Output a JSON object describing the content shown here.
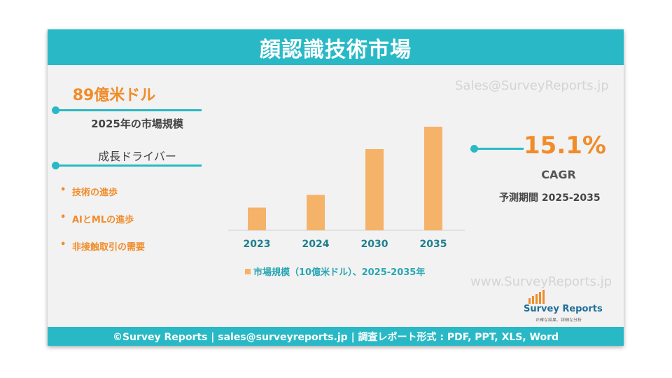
{
  "header": {
    "title": "顔認識技術市場"
  },
  "left_panel": {
    "market_value": "89億米ドル",
    "market_value_caption": "2025年の市場規模",
    "drivers_title": "成長ドライバー",
    "drivers": [
      "技術の進歩",
      "AIとMLの進歩",
      "非接触取引の需要"
    ]
  },
  "right_panel": {
    "cagr_value": "15.1%",
    "cagr_label": "CAGR",
    "forecast_period": "予測期間 2025-2035"
  },
  "watermarks": {
    "top": "Sales@SurveyReports.jp",
    "bottom": "www.SurveyReports.jp"
  },
  "logo": {
    "name": "Survey Reports",
    "tagline": "正確な結果、詳細な分析"
  },
  "footer": {
    "text": "©Survey Reports | sales@surveyreports.jp |  調査レポート形式 : PDF, PPT, XLS, Word"
  },
  "colors": {
    "accent": "#29b9c6",
    "bar": "#f5b36a",
    "highlight": "#f08c2a"
  },
  "chart_data": {
    "type": "bar",
    "categories": [
      "2023",
      "2024",
      "2030",
      "2035"
    ],
    "series": [
      {
        "name": "市場規模（10億米ドル）、2025-2035年",
        "values": [
          6.8,
          10.6,
          24.3,
          31.0
        ]
      }
    ],
    "ylim": [
      0,
      31
    ],
    "grid": false,
    "legend": "bottom"
  }
}
